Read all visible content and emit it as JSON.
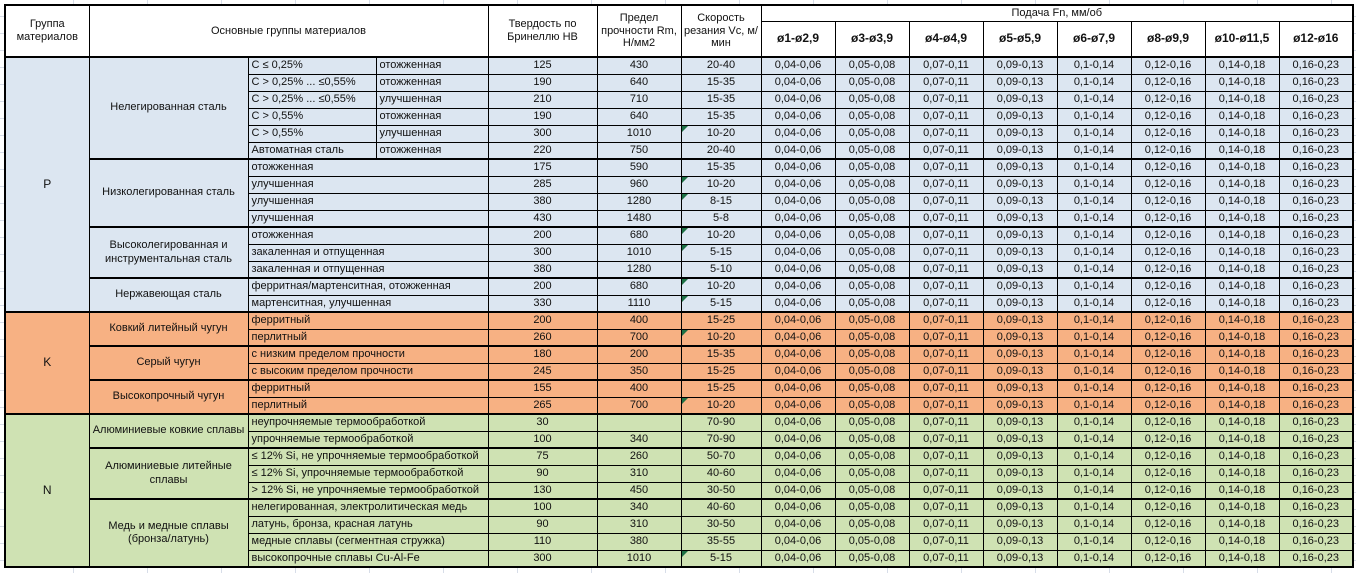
{
  "colors": {
    "steel_blue": "#DCE6F1",
    "cast_iron_orange": "#F7B183",
    "nonferrous_green": "#CFE2B3",
    "error_marker_green": "#1E7145",
    "border_black": "#000000"
  },
  "table": {
    "header": {
      "group_col": "Группа материалов",
      "material_col": "Основные группы материалов",
      "hardness_col": "Твердость по Бринеллю НВ",
      "strength_col": "Предел прочности Rm, Н/мм2",
      "speed_col": "Скорость резания Vc, м/мин",
      "feed_col": "Подача Fn, мм/об",
      "feed_diameters": [
        "ø1-ø2,9",
        "ø3-ø3,9",
        "ø4-ø4,9",
        "ø5-ø5,9",
        "ø6-ø7,9",
        "ø8-ø9,9",
        "ø10-ø11,5",
        "ø12-ø16"
      ]
    },
    "feed_values": [
      "0,04-0,06",
      "0,05-0,08",
      "0,07-0,11",
      "0,09-0,13",
      "0,1-0,14",
      "0,12-0,16",
      "0,14-0,18",
      "0,16-0,23"
    ],
    "sections": [
      {
        "letter": "P",
        "color_key": "steel_blue",
        "groups": [
          {
            "name": "Нелегированная сталь",
            "rows": [
              {
                "c1": "C ≤ 0,25%",
                "c2": "отожженная",
                "hb": "125",
                "rm": "430",
                "vc": "20-40",
                "marker": false
              },
              {
                "c1": "C > 0,25% ... ≤0,55%",
                "c2": "отожженная",
                "hb": "190",
                "rm": "640",
                "vc": "15-35",
                "marker": false
              },
              {
                "c1": "C > 0,25% ... ≤0,55%",
                "c2": "улучшенная",
                "hb": "210",
                "rm": "710",
                "vc": "15-35",
                "marker": false
              },
              {
                "c1": "C > 0,55%",
                "c2": "отожженная",
                "hb": "190",
                "rm": "640",
                "vc": "15-35",
                "marker": false
              },
              {
                "c1": "C > 0,55%",
                "c2": "улучшенная",
                "hb": "300",
                "rm": "1010",
                "vc": "10-20",
                "marker": true
              },
              {
                "c1": "Автоматная сталь",
                "c2": "отожженная",
                "hb": "220",
                "rm": "750",
                "vc": "20-40",
                "marker": false
              }
            ]
          },
          {
            "name": "Низколегированная сталь",
            "rows": [
              {
                "desc": "отожженная",
                "hb": "175",
                "rm": "590",
                "vc": "15-35",
                "marker": false
              },
              {
                "desc": "улучшенная",
                "hb": "285",
                "rm": "960",
                "vc": "10-20",
                "marker": true
              },
              {
                "desc": "улучшенная",
                "hb": "380",
                "rm": "1280",
                "vc": "8-15",
                "marker": true
              },
              {
                "desc": "улучшенная",
                "hb": "430",
                "rm": "1480",
                "vc": "5-8",
                "marker": false
              }
            ]
          },
          {
            "name": "Высоколегированная и инструментальная сталь",
            "rows": [
              {
                "desc": "отожженная",
                "hb": "200",
                "rm": "680",
                "vc": "10-20",
                "marker": true
              },
              {
                "desc": "закаленная и отпущенная",
                "hb": "300",
                "rm": "1010",
                "vc": "5-15",
                "marker": true
              },
              {
                "desc": "закаленная и отпущенная",
                "hb": "380",
                "rm": "1280",
                "vc": "5-10",
                "marker": false
              }
            ]
          },
          {
            "name": "Нержавеющая сталь",
            "rows": [
              {
                "desc": "ферритная/мартенситная, отожженная",
                "hb": "200",
                "rm": "680",
                "vc": "10-20",
                "marker": true
              },
              {
                "desc": "мартенситная, улучшенная",
                "hb": "330",
                "rm": "1110",
                "vc": "5-15",
                "marker": true
              }
            ]
          }
        ]
      },
      {
        "letter": "K",
        "color_key": "cast_iron_orange",
        "groups": [
          {
            "name": "Ковкий литейный чугун",
            "rows": [
              {
                "desc": "ферритный",
                "hb": "200",
                "rm": "400",
                "vc": "15-25",
                "marker": false
              },
              {
                "desc": "перлитный",
                "hb": "260",
                "rm": "700",
                "vc": "10-20",
                "marker": true
              }
            ]
          },
          {
            "name": "Серый чугун",
            "rows": [
              {
                "desc": "с низким пределом прочности",
                "hb": "180",
                "rm": "200",
                "vc": "15-35",
                "marker": false
              },
              {
                "desc": "с высоким пределом прочности",
                "hb": "245",
                "rm": "350",
                "vc": "15-25",
                "marker": false
              }
            ]
          },
          {
            "name": "Высокопрочный чугун",
            "rows": [
              {
                "desc": "ферритный",
                "hb": "155",
                "rm": "400",
                "vc": "15-25",
                "marker": false
              },
              {
                "desc": "перлитный",
                "hb": "265",
                "rm": "700",
                "vc": "10-20",
                "marker": true
              }
            ]
          }
        ]
      },
      {
        "letter": "N",
        "color_key": "nonferrous_green",
        "groups": [
          {
            "name": "Алюминиевые ковкие сплавы",
            "rows": [
              {
                "desc": "неупрочняемые термообработкой",
                "hb": "30",
                "rm": "",
                "vc": "70-90",
                "marker": false
              },
              {
                "desc": "упрочняемые термообработкой",
                "hb": "100",
                "rm": "340",
                "vc": "70-90",
                "marker": false
              }
            ]
          },
          {
            "name": "Алюминиевые литейные сплавы",
            "rows": [
              {
                "desc": "≤ 12% Si, не упрочняемые термообработкой",
                "hb": "75",
                "rm": "260",
                "vc": "50-70",
                "marker": false
              },
              {
                "desc": "≤ 12% Si, упрочняемые термообработкой",
                "hb": "90",
                "rm": "310",
                "vc": "40-60",
                "marker": false
              },
              {
                "desc": "> 12% Si, не упрочняемые термообработкой",
                "hb": "130",
                "rm": "450",
                "vc": "30-50",
                "marker": false
              }
            ]
          },
          {
            "name": "Медь и медные сплавы (бронза/латунь)",
            "rows": [
              {
                "desc": "нелегированная, электролитическая медь",
                "hb": "100",
                "rm": "340",
                "vc": "40-60",
                "marker": false
              },
              {
                "desc": "латунь, бронза, красная латунь",
                "hb": "90",
                "rm": "310",
                "vc": "30-50",
                "marker": false
              },
              {
                "desc": "медные сплавы (сегментная стружка)",
                "hb": "110",
                "rm": "380",
                "vc": "35-55",
                "marker": false
              },
              {
                "desc": "высокопрочные сплавы Cu-Al-Fe",
                "hb": "300",
                "rm": "1010",
                "vc": "5-15",
                "marker": true
              }
            ]
          }
        ]
      }
    ]
  }
}
